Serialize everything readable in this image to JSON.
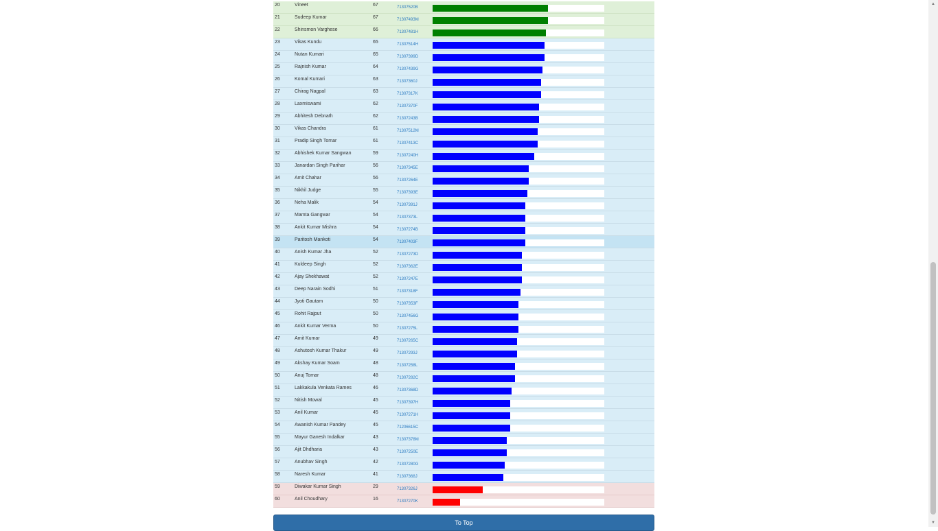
{
  "colors": {
    "green": "#008000",
    "blue": "#0000ff",
    "red": "#ff0000"
  },
  "bar_max_score": 100,
  "rows": [
    {
      "rank": "20",
      "name": "Vineet",
      "score": "67",
      "roll": "71307520B",
      "band": "green"
    },
    {
      "rank": "21",
      "name": "Sudeep Kumar",
      "score": "67",
      "roll": "71307493M",
      "band": "green"
    },
    {
      "rank": "22",
      "name": "Shinsmon Varghese",
      "score": "66",
      "roll": "71307481H",
      "band": "green"
    },
    {
      "rank": "23",
      "name": "Vikas Kundu",
      "score": "65",
      "roll": "71307514H",
      "band": "blue"
    },
    {
      "rank": "24",
      "name": "Nutan Kumari",
      "score": "65",
      "roll": "71307399D",
      "band": "blue"
    },
    {
      "rank": "25",
      "name": "Rajnish Kumar",
      "score": "64",
      "roll": "71307439G",
      "band": "blue"
    },
    {
      "rank": "26",
      "name": "Komal Kumari",
      "score": "63",
      "roll": "71307360J",
      "band": "blue"
    },
    {
      "rank": "27",
      "name": "Chirag Nagpal",
      "score": "63",
      "roll": "71307317K",
      "band": "blue"
    },
    {
      "rank": "28",
      "name": "Laxmiswami",
      "score": "62",
      "roll": "71307370F",
      "band": "blue"
    },
    {
      "rank": "29",
      "name": "Abhitesh Debnath",
      "score": "62",
      "roll": "71307243B",
      "band": "blue"
    },
    {
      "rank": "30",
      "name": "Vikas Chandra",
      "score": "61",
      "roll": "71307512M",
      "band": "blue"
    },
    {
      "rank": "31",
      "name": "Pradip Singh Tomar",
      "score": "61",
      "roll": "71307413C",
      "band": "blue"
    },
    {
      "rank": "32",
      "name": "Abhishek Kumar Sangwan",
      "score": "59",
      "roll": "71307240H",
      "band": "blue"
    },
    {
      "rank": "33",
      "name": "Janardan Singh Parihar",
      "score": "56",
      "roll": "71307345E",
      "band": "blue"
    },
    {
      "rank": "34",
      "name": "Amit Chahar",
      "score": "56",
      "roll": "71307264E",
      "band": "blue"
    },
    {
      "rank": "35",
      "name": "Nikhil Judge",
      "score": "55",
      "roll": "71307393E",
      "band": "blue"
    },
    {
      "rank": "36",
      "name": "Neha Malik",
      "score": "54",
      "roll": "71307391J",
      "band": "blue"
    },
    {
      "rank": "37",
      "name": "Mamta Gangwar",
      "score": "54",
      "roll": "71307373L",
      "band": "blue"
    },
    {
      "rank": "38",
      "name": "Ankit Kumar Mishra",
      "score": "54",
      "roll": "71307274B",
      "band": "blue"
    },
    {
      "rank": "39",
      "name": "Paritosh Mankoti",
      "score": "54",
      "roll": "71307403F",
      "band": "blue",
      "highlight": true
    },
    {
      "rank": "40",
      "name": "Anish Kumar Jha",
      "score": "52",
      "roll": "71307273D",
      "band": "blue"
    },
    {
      "rank": "41",
      "name": "Kuldeep Singh",
      "score": "52",
      "roll": "71307362E",
      "band": "blue"
    },
    {
      "rank": "42",
      "name": "Ajay Shekhawat",
      "score": "52",
      "roll": "71307247E",
      "band": "blue"
    },
    {
      "rank": "43",
      "name": "Deep Narain Sodhi",
      "score": "51",
      "roll": "71307318F",
      "band": "blue"
    },
    {
      "rank": "44",
      "name": "Jyoti Gautam",
      "score": "50",
      "roll": "71307353F",
      "band": "blue"
    },
    {
      "rank": "45",
      "name": "Rohit Rajput",
      "score": "50",
      "roll": "71307456G",
      "band": "blue"
    },
    {
      "rank": "46",
      "name": "Ankit Kumar Verma",
      "score": "50",
      "roll": "71307275L",
      "band": "blue"
    },
    {
      "rank": "47",
      "name": "Amit Kumar",
      "score": "49",
      "roll": "71307265C",
      "band": "blue"
    },
    {
      "rank": "48",
      "name": "Ashutosh Kumar Thakur",
      "score": "49",
      "roll": "71307293J",
      "band": "blue"
    },
    {
      "rank": "49",
      "name": "Akshay Kumar Soam",
      "score": "48",
      "roll": "71307258L",
      "band": "blue"
    },
    {
      "rank": "50",
      "name": "Anuj Tomar",
      "score": "48",
      "roll": "71307282C",
      "band": "blue"
    },
    {
      "rank": "51",
      "name": "Lakkakula Venkata Rames",
      "score": "46",
      "roll": "71307368D",
      "band": "blue"
    },
    {
      "rank": "52",
      "name": "Nitish Mowal",
      "score": "45",
      "roll": "71307397H",
      "band": "blue"
    },
    {
      "rank": "53",
      "name": "Anil Kumar",
      "score": "45",
      "roll": "71307271H",
      "band": "blue"
    },
    {
      "rank": "54",
      "name": "Awanish Kumar Pandey",
      "score": "45",
      "roll": "71206615C",
      "band": "blue"
    },
    {
      "rank": "55",
      "name": "Mayur Ganesh Indalkar",
      "score": "43",
      "roll": "71307378M",
      "band": "blue"
    },
    {
      "rank": "56",
      "name": "Ajit Dhdharia",
      "score": "43",
      "roll": "71307250E",
      "band": "blue"
    },
    {
      "rank": "57",
      "name": "Anubhav Singh",
      "score": "42",
      "roll": "71307280G",
      "band": "blue"
    },
    {
      "rank": "58",
      "name": "Naresh Kumar",
      "score": "41",
      "roll": "71307368J",
      "band": "blue"
    },
    {
      "rank": "59",
      "name": "Diwakar Kumar Singh",
      "score": "29",
      "roll": "71307326J",
      "band": "red"
    },
    {
      "rank": "60",
      "name": "Anil Choudhary",
      "score": "16",
      "roll": "71307270K",
      "band": "red"
    }
  ],
  "to_top_label": "To Top"
}
